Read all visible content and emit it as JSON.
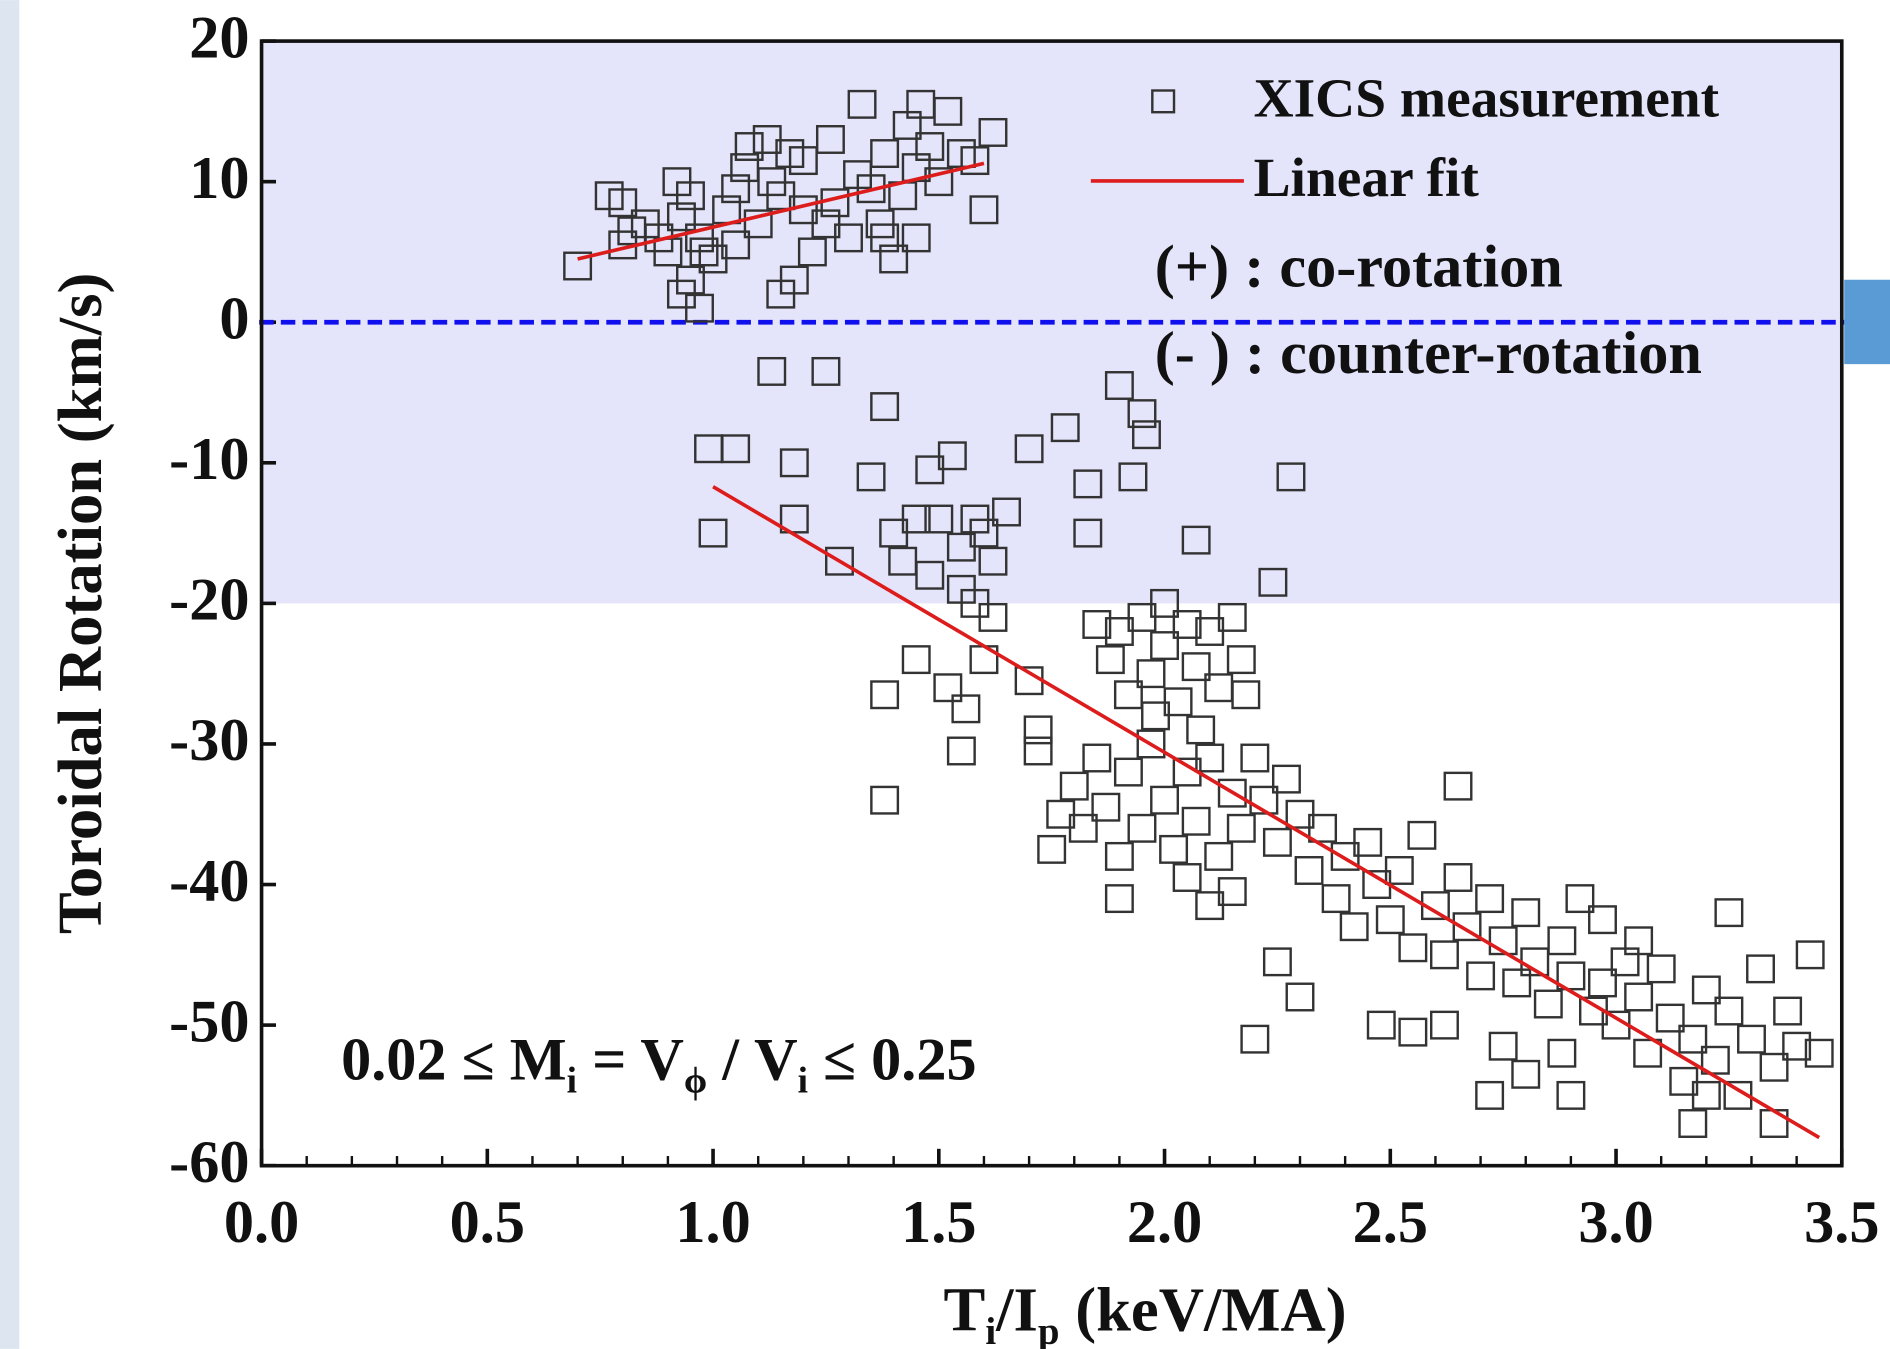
{
  "chart_data": {
    "type": "scatter",
    "xlabel": [
      "T",
      "i",
      "/I",
      "p",
      " (keV/MA)"
    ],
    "ylabel": "Toroidal Rotation (km/s)",
    "xlim": [
      0,
      3.5
    ],
    "ylim": [
      -60,
      20
    ],
    "xticks": [
      {
        "value": 0,
        "label": "0.0"
      },
      0.5,
      {
        "value": 1,
        "label": "1.0"
      },
      1.5,
      {
        "value": 2,
        "label": "2.0"
      },
      2.5,
      {
        "value": 3,
        "label": "3.0"
      },
      3.5
    ],
    "xminorticks": [
      0.1,
      0.2,
      0.3,
      0.4,
      0.6,
      0.7,
      0.8,
      0.9,
      1.1,
      1.2,
      1.3,
      1.4,
      1.6,
      1.7,
      1.8,
      1.9,
      2.1,
      2.2,
      2.3,
      2.4,
      2.6,
      2.7,
      2.8,
      2.9,
      3.1,
      3.2,
      3.3,
      3.4
    ],
    "yticks": [
      20,
      10,
      0,
      -10,
      -20,
      -30,
      -40,
      -50,
      -60
    ],
    "shaded_band": [
      -20,
      20
    ],
    "shaded_color": "#e4e4fa",
    "hline": 0,
    "hline_color": "#1010ee",
    "annotations": [
      "(+) : co-rotation",
      "(- ) : counter-rotation"
    ],
    "formula": [
      "0.02 ≤ M",
      "i",
      " = V",
      "ϕ",
      " / V",
      "i",
      " ≤  0.25"
    ],
    "formula_color": "#ee1111",
    "series": [
      {
        "name": "XICS measurement",
        "color": "#333333",
        "x": [
          0.7,
          0.77,
          0.8,
          0.8,
          0.82,
          0.85,
          0.88,
          0.9,
          0.92,
          0.93,
          0.95,
          0.95,
          0.93,
          0.97,
          0.97,
          0.98,
          1.0,
          1.03,
          1.05,
          1.05,
          1.07,
          1.08,
          1.1,
          1.12,
          1.13,
          1.15,
          1.15,
          1.17,
          1.18,
          1.2,
          1.2,
          1.22,
          1.25,
          1.26,
          1.27,
          1.3,
          1.32,
          1.33,
          1.35,
          1.37,
          1.38,
          1.4,
          1.42,
          1.43,
          1.45,
          1.46,
          1.48,
          1.5,
          1.52,
          1.55,
          1.58,
          1.6,
          1.62,
          1.45,
          1.38,
          1.13,
          1.25,
          1.38,
          0.99,
          1.05,
          1.0,
          1.18,
          1.18,
          1.35,
          1.53,
          1.48,
          1.4,
          1.42,
          1.45,
          1.5,
          1.48,
          1.55,
          1.58,
          1.6,
          1.62,
          1.65,
          1.7,
          1.78,
          1.83,
          1.83,
          1.9,
          1.93,
          1.95,
          1.96,
          2.07,
          2.28,
          2.24,
          1.28,
          1.55,
          1.58,
          1.45,
          1.38,
          1.52,
          1.56,
          1.55,
          1.38,
          1.62,
          1.6,
          1.7,
          1.72,
          1.72,
          1.85,
          1.88,
          1.9,
          1.92,
          1.95,
          1.97,
          2.0,
          2.0,
          2.03,
          2.05,
          2.07,
          2.1,
          2.12,
          2.15,
          2.17,
          2.18,
          1.98,
          2.08,
          1.75,
          1.77,
          1.8,
          1.82,
          1.85,
          1.87,
          1.9,
          1.92,
          1.95,
          1.97,
          2.0,
          2.02,
          2.05,
          2.07,
          2.1,
          2.12,
          2.15,
          2.17,
          2.2,
          2.22,
          2.25,
          2.27,
          2.3,
          1.9,
          2.05,
          2.15,
          2.32,
          2.35,
          2.38,
          2.4,
          2.42,
          2.45,
          2.47,
          2.5,
          2.52,
          2.55,
          2.57,
          2.6,
          2.62,
          2.65,
          2.67,
          2.7,
          2.72,
          2.75,
          2.78,
          2.8,
          2.82,
          2.85,
          2.88,
          2.9,
          2.92,
          2.95,
          2.97,
          3.0,
          3.02,
          3.05,
          3.07,
          3.1,
          3.12,
          3.15,
          3.17,
          3.2,
          3.22,
          3.25,
          3.27,
          3.3,
          3.32,
          3.35,
          3.38,
          3.4,
          3.43,
          3.45,
          3.17,
          3.2,
          2.48,
          2.55,
          2.62,
          2.25,
          2.3,
          2.1,
          2.8,
          2.88,
          2.9,
          2.72,
          3.25,
          3.05,
          2.2,
          2.75,
          3.35,
          2.97,
          2.65
        ],
        "values": [
          4,
          9,
          8.5,
          5.5,
          6.5,
          7,
          6,
          5,
          10,
          7.5,
          9,
          3,
          2,
          6,
          1,
          5,
          4.5,
          8,
          9.5,
          5.5,
          11,
          12.5,
          7,
          13,
          10,
          9,
          2,
          12,
          3,
          8,
          11.5,
          5,
          7,
          13,
          8.5,
          6,
          10.5,
          15.5,
          9.5,
          7,
          12,
          4.5,
          9,
          14,
          11,
          15.5,
          12.5,
          10,
          15,
          12,
          11.5,
          8,
          13.5,
          6,
          6,
          -3.5,
          -3.5,
          -6,
          -9,
          -9,
          -15,
          -10,
          -14,
          -11,
          -9.5,
          -10.5,
          -15,
          -17,
          -14,
          -14,
          -18,
          -16,
          -14,
          -15,
          -17,
          -13.5,
          -9,
          -7.5,
          -11.5,
          -15,
          -4.5,
          -11,
          -6.5,
          -8,
          -15.5,
          -11,
          -18.5,
          -17,
          -19,
          -20,
          -24,
          -26.5,
          -26,
          -27.5,
          -30.5,
          -34,
          -21,
          -24,
          -25.5,
          -29,
          -30.5,
          -21.5,
          -24,
          -22,
          -26.5,
          -21,
          -25,
          -20,
          -23,
          -27,
          -21.5,
          -24.5,
          -22,
          -26,
          -21,
          -24,
          -26.5,
          -28,
          -29,
          -37.5,
          -35,
          -33,
          -36,
          -31,
          -34.5,
          -38,
          -32,
          -36,
          -30,
          -34,
          -37.5,
          -32,
          -35.5,
          -31,
          -38,
          -33.5,
          -36,
          -31,
          -34,
          -37,
          -32.5,
          -35,
          -41,
          -39.5,
          -40.5,
          -39,
          -36,
          -41,
          -38,
          -43,
          -37,
          -40,
          -42.5,
          -39,
          -44.5,
          -36.5,
          -41.5,
          -45,
          -39.5,
          -43,
          -46.5,
          -41,
          -44,
          -47,
          -42,
          -45.5,
          -48.5,
          -44,
          -46.5,
          -41,
          -49,
          -47,
          -50,
          -45.5,
          -48,
          -52,
          -46,
          -49.5,
          -54,
          -51,
          -47.5,
          -52.5,
          -49,
          -55,
          -51,
          -46,
          -53,
          -49,
          -51.5,
          -45,
          -52,
          -57,
          -55,
          -50,
          -50.5,
          -50,
          -45.5,
          -48,
          -41.5,
          -53.5,
          -52,
          -55,
          -55,
          -42,
          -44,
          -51,
          -51.5,
          -57,
          -42.5,
          -33
        ]
      },
      {
        "name": "Linear fit",
        "color": "#dd1c1c",
        "x": [
          0.7,
          1.6,
          null,
          1.0,
          3.45
        ],
        "values": [
          4.5,
          11.3,
          null,
          -11.7,
          -58
        ]
      }
    ]
  }
}
